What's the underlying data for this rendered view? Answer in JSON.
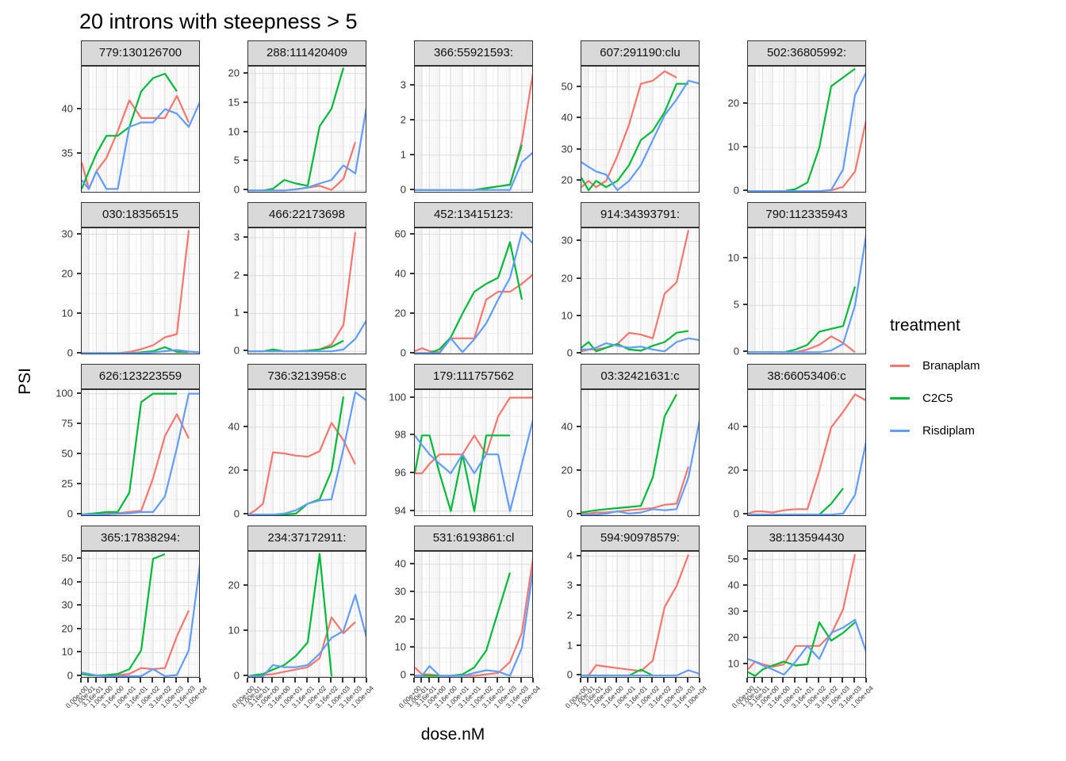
{
  "chart_data": {
    "type": "line",
    "title": "20 introns with steepness > 5",
    "xlabel": "dose.nM",
    "ylabel": "PSI",
    "x_scale": "pseudo-log",
    "grid": "on",
    "doses": [
      0,
      0.1,
      0.316,
      1,
      3.16,
      10,
      31.6,
      100,
      316,
      1000,
      3160,
      10000
    ],
    "x_tick_labels": [
      "0.00e+00",
      "1.00e-01",
      "3.16e-01",
      "1.00e+00",
      "3.16e+00",
      "1.00e+01",
      "3.16e+01",
      "1.00e+02",
      "3.16e+02",
      "1.00e+03",
      "3.16e+03",
      "1.00e+04"
    ],
    "legend": {
      "title": "treatment",
      "position": "right",
      "entries": [
        "Branaplam",
        "C2C5",
        "Risdiplam"
      ]
    },
    "colors": {
      "Branaplam": "#F8766D",
      "C2C5": "#00BA38",
      "Risdiplam": "#619CFF"
    },
    "panels": [
      {
        "label": "779:130126700",
        "yticks": [
          35,
          40
        ],
        "ylim": [
          30.5,
          44.8
        ],
        "series": {
          "Branaplam": [
            34,
            31,
            33,
            34.5,
            37.5,
            41,
            39,
            39,
            39,
            41.5,
            38.5,
            null
          ],
          "C2C5": [
            31,
            33,
            35,
            37,
            37,
            38,
            42,
            43.5,
            44,
            42,
            null,
            null
          ],
          "Risdiplam": [
            32,
            31,
            33,
            31,
            31,
            38,
            38.5,
            38.5,
            40,
            39.5,
            38,
            41
          ]
        }
      },
      {
        "label": "288:111420409",
        "yticks": [
          0,
          5,
          10,
          15,
          20
        ],
        "ylim": [
          -0.5,
          21.2
        ],
        "series": {
          "Branaplam": [
            0,
            0,
            0,
            0,
            0,
            0.2,
            0.5,
            0.8,
            0.1,
            2,
            8.3,
            null
          ],
          "C2C5": [
            0,
            0,
            0,
            0.3,
            1.8,
            1.2,
            0.8,
            11,
            14,
            21,
            null,
            null
          ],
          "Risdiplam": [
            0,
            0,
            0,
            0,
            0,
            0.2,
            0.5,
            1.2,
            1.8,
            4.3,
            2.9,
            15
          ]
        }
      },
      {
        "label": "366:55921593:",
        "yticks": [
          0,
          1,
          2,
          3
        ],
        "ylim": [
          -0.1,
          3.55
        ],
        "series": {
          "Branaplam": [
            0,
            0,
            0,
            0,
            0,
            0,
            0,
            0.05,
            0.1,
            0.15,
            1.4,
            3.5
          ],
          "C2C5": [
            0,
            0,
            0,
            0,
            0,
            0,
            0,
            0.05,
            0.1,
            0.15,
            1.3,
            null
          ],
          "Risdiplam": [
            0,
            0,
            0,
            0,
            0,
            0,
            0,
            0,
            0,
            0,
            0.8,
            1.1
          ]
        }
      },
      {
        "label": "607:291190:clu",
        "yticks": [
          20,
          30,
          40,
          50
        ],
        "ylim": [
          16,
          56.5
        ],
        "series": {
          "Branaplam": [
            18,
            20,
            18,
            20,
            28,
            38,
            51,
            52,
            55,
            53,
            null,
            null
          ],
          "C2C5": [
            21,
            17,
            20,
            18,
            20,
            25,
            33,
            36,
            42,
            51,
            51,
            null
          ],
          "Risdiplam": [
            26,
            24.5,
            23,
            22,
            17,
            20,
            25,
            33,
            41,
            46,
            52,
            51
          ]
        }
      },
      {
        "label": "502:36805992:",
        "yticks": [
          0,
          10,
          20
        ],
        "ylim": [
          -0.5,
          28.5
        ],
        "series": {
          "Branaplam": [
            0,
            0,
            0,
            0,
            0,
            0,
            0,
            0,
            0.2,
            1,
            4.5,
            17
          ],
          "C2C5": [
            0,
            0,
            0,
            0,
            0,
            0.5,
            2,
            10,
            24,
            26,
            28,
            null
          ],
          "Risdiplam": [
            0,
            0,
            0,
            0,
            0,
            0,
            0,
            0,
            0.3,
            5,
            22,
            27.5
          ]
        }
      },
      {
        "label": "030:18356515",
        "yticks": [
          0,
          10,
          20,
          30
        ],
        "ylim": [
          -0.5,
          31.5
        ],
        "series": {
          "Branaplam": [
            0,
            0,
            0,
            0,
            0,
            0.3,
            1,
            2,
            4,
            4.8,
            31,
            null
          ],
          "C2C5": [
            0,
            0,
            0,
            0,
            0,
            0,
            0.2,
            0.5,
            1.5,
            0.3,
            0.3,
            null
          ],
          "Risdiplam": [
            0,
            0,
            0,
            0,
            0,
            0,
            0,
            0.2,
            0.5,
            0.8,
            0.4,
            0.2
          ]
        }
      },
      {
        "label": "466:22173698",
        "yticks": [
          0,
          1,
          2,
          3
        ],
        "ylim": [
          -0.1,
          3.25
        ],
        "series": {
          "Branaplam": [
            0,
            0,
            0,
            0,
            0,
            0,
            0,
            0.05,
            0.18,
            0.7,
            3.15,
            null
          ],
          "C2C5": [
            0,
            0,
            0,
            0.05,
            0,
            0,
            0.02,
            0.05,
            0.12,
            0.28,
            null,
            null
          ],
          "Risdiplam": [
            0,
            0,
            0,
            0,
            0,
            0,
            0,
            0,
            0,
            0.05,
            0.33,
            0.85
          ]
        }
      },
      {
        "label": "452:13415123:",
        "yticks": [
          0,
          20,
          40,
          60
        ],
        "ylim": [
          -1,
          63
        ],
        "series": {
          "Branaplam": [
            1,
            2.5,
            1,
            0.5,
            7.5,
            7.5,
            7.5,
            27,
            31,
            31,
            35,
            40
          ],
          "C2C5": [
            0,
            0,
            0,
            2,
            8,
            20,
            31,
            35,
            38,
            56,
            27,
            null
          ],
          "Risdiplam": [
            0,
            0,
            0,
            0,
            7.5,
            0.5,
            7,
            15,
            27,
            38,
            61,
            55
          ]
        }
      },
      {
        "label": "914:34393791:",
        "yticks": [
          0,
          10,
          20,
          30
        ],
        "ylim": [
          -0.5,
          33.5
        ],
        "series": {
          "Branaplam": [
            0.5,
            1,
            1,
            1.5,
            2.5,
            5.5,
            5,
            4,
            16,
            19,
            33,
            null
          ],
          "C2C5": [
            1.5,
            3,
            0.5,
            1.5,
            2.5,
            1,
            0.7,
            2,
            3,
            5.5,
            6,
            null
          ],
          "Risdiplam": [
            1,
            1,
            1.5,
            2.7,
            2,
            1.5,
            1.8,
            1,
            0.5,
            3,
            4,
            3.5
          ]
        }
      },
      {
        "label": "790:112335943",
        "yticks": [
          0,
          5,
          10
        ],
        "ylim": [
          -0.3,
          13.2
        ],
        "series": {
          "Branaplam": [
            0,
            0,
            0,
            0,
            0,
            0,
            0.3,
            0.8,
            1.7,
            1,
            0,
            null
          ],
          "C2C5": [
            0,
            0,
            0,
            0,
            0,
            0.3,
            0.8,
            2.2,
            2.5,
            2.8,
            7,
            null
          ],
          "Risdiplam": [
            0,
            0,
            0,
            0,
            0,
            0,
            0,
            0,
            0.2,
            0.9,
            5,
            13
          ]
        }
      },
      {
        "label": "626:123223559",
        "yticks": [
          0,
          25,
          50,
          75,
          100
        ],
        "ylim": [
          -2,
          103
        ],
        "series": {
          "Branaplam": [
            0,
            0,
            0,
            0.5,
            1,
            2,
            3,
            30,
            65,
            83,
            63,
            null
          ],
          "C2C5": [
            0,
            0.5,
            1,
            2,
            2,
            18,
            93,
            100,
            100,
            100,
            null,
            null
          ],
          "Risdiplam": [
            0,
            0,
            0,
            0,
            0.5,
            1,
            2,
            2,
            15,
            55,
            100,
            100
          ]
        }
      },
      {
        "label": "736:3213958:c",
        "yticks": [
          0,
          20,
          40
        ],
        "ylim": [
          -1,
          57
        ],
        "series": {
          "Branaplam": [
            0,
            2,
            5,
            28.5,
            28,
            27,
            26.5,
            29,
            42,
            34,
            23,
            null
          ],
          "C2C5": [
            0,
            0,
            0,
            0,
            0,
            0.5,
            5,
            7,
            20,
            54,
            null,
            null
          ],
          "Risdiplam": [
            0,
            0,
            0,
            0,
            0.5,
            2,
            5,
            6.5,
            7,
            30,
            56,
            52
          ]
        }
      },
      {
        "label": "179:111757562",
        "yticks": [
          94,
          96,
          98,
          100
        ],
        "ylim": [
          93.7,
          100.4
        ],
        "series": {
          "Branaplam": [
            96,
            96,
            96.5,
            97,
            97,
            97,
            98,
            97,
            99,
            100,
            100,
            100
          ],
          "C2C5": [
            96,
            98,
            98,
            96,
            94,
            97,
            94,
            98,
            98,
            98,
            null,
            null
          ],
          "Risdiplam": [
            98,
            97.5,
            97,
            96.5,
            96,
            97,
            96,
            97,
            97,
            94,
            96.5,
            99
          ]
        }
      },
      {
        "label": "03:32421631:c",
        "yticks": [
          0,
          20,
          40
        ],
        "ylim": [
          -1,
          57
        ],
        "series": {
          "Branaplam": [
            0.5,
            0.5,
            1,
            1,
            1.5,
            2,
            2.5,
            3,
            4.5,
            5,
            22,
            null
          ],
          "C2C5": [
            1,
            1.5,
            2,
            2.5,
            3,
            3.5,
            4,
            17,
            45,
            55,
            null,
            null
          ],
          "Risdiplam": [
            0,
            0,
            0,
            0.5,
            1.5,
            0.5,
            1,
            2.5,
            2,
            2.5,
            17,
            45
          ]
        }
      },
      {
        "label": "38:66053406:c",
        "yticks": [
          0,
          20,
          40
        ],
        "ylim": [
          -1,
          57
        ],
        "series": {
          "Branaplam": [
            0.5,
            1.5,
            1.5,
            1,
            2,
            2.5,
            2.5,
            20,
            40,
            47,
            55,
            52
          ],
          "C2C5": [
            0,
            0,
            0,
            0,
            0,
            0,
            0,
            0,
            5,
            12,
            null,
            null
          ],
          "Risdiplam": [
            0,
            0,
            0,
            0,
            0,
            0,
            0,
            0,
            0,
            0.5,
            9,
            35
          ]
        }
      },
      {
        "label": "365:17838294:",
        "yticks": [
          0,
          10,
          20,
          30,
          40,
          50
        ],
        "ylim": [
          -1,
          53
        ],
        "series": {
          "Branaplam": [
            1,
            0.5,
            0.3,
            0.3,
            0.5,
            1,
            3.5,
            3,
            3.5,
            17,
            28,
            null
          ],
          "C2C5": [
            1,
            0.5,
            0.3,
            0.5,
            1,
            3,
            11,
            50,
            52,
            null,
            null,
            null
          ],
          "Risdiplam": [
            1.5,
            1,
            0.3,
            0,
            0,
            0,
            0,
            3,
            0,
            0.5,
            11,
            50
          ]
        }
      },
      {
        "label": "234:37172911:",
        "yticks": [
          0,
          10,
          20
        ],
        "ylim": [
          -0.5,
          27.5
        ],
        "series": {
          "Branaplam": [
            0,
            0,
            0.3,
            0.5,
            1,
            1.5,
            2,
            4,
            13,
            9.5,
            12,
            null
          ],
          "C2C5": [
            0,
            0.3,
            0.5,
            1.5,
            2.5,
            4.5,
            7.5,
            27,
            0,
            null,
            null,
            null
          ],
          "Risdiplam": [
            0,
            0,
            0,
            2.5,
            2,
            2,
            2.5,
            5,
            8.5,
            10,
            18,
            8
          ]
        }
      },
      {
        "label": "531:6193861:cl",
        "yticks": [
          0,
          10,
          20,
          30,
          40
        ],
        "ylim": [
          -1,
          44.5
        ],
        "series": {
          "Branaplam": [
            3,
            0.5,
            0.5,
            0,
            0,
            0,
            0,
            0.5,
            1,
            5,
            15.5,
            44
          ],
          "C2C5": [
            0,
            0,
            0,
            0,
            0,
            0.5,
            3,
            9,
            23,
            37,
            null,
            null
          ],
          "Risdiplam": [
            0,
            0,
            3.5,
            0,
            0,
            0,
            1,
            2,
            1.5,
            0,
            10,
            40
          ]
        }
      },
      {
        "label": "594:90978579:",
        "yticks": [
          0,
          1,
          2,
          3,
          4
        ],
        "ylim": [
          -0.1,
          4.15
        ],
        "series": {
          "Branaplam": [
            0,
            0,
            0.35,
            0.3,
            0.25,
            0.2,
            0.15,
            0.5,
            2.3,
            3,
            4.05,
            null
          ],
          "C2C5": [
            0,
            0,
            0,
            0,
            0,
            0,
            0.2,
            0,
            null,
            null,
            null,
            null
          ],
          "Risdiplam": [
            0,
            0,
            0,
            0,
            0,
            0,
            0,
            0,
            0,
            0,
            0.18,
            0.05
          ]
        }
      },
      {
        "label": "38:113594430",
        "yticks": [
          10,
          20,
          30,
          40,
          50
        ],
        "ylim": [
          4.5,
          53
        ],
        "series": {
          "Branaplam": [
            8,
            11,
            10,
            9,
            10,
            17,
            17,
            17,
            21.5,
            31,
            52,
            null
          ],
          "C2C5": [
            7,
            5.5,
            8,
            9.5,
            11,
            9.5,
            10,
            26,
            19,
            22,
            26,
            null
          ],
          "Risdiplam": [
            12,
            11,
            9.5,
            8,
            6,
            11,
            17,
            12,
            22,
            24,
            27,
            14
          ]
        }
      }
    ]
  }
}
